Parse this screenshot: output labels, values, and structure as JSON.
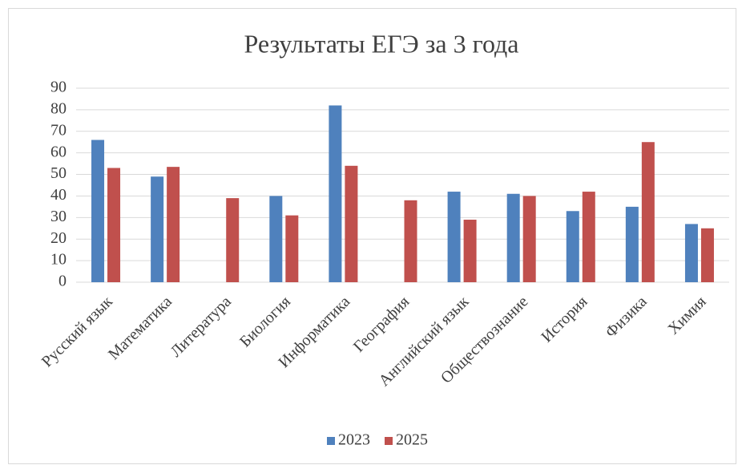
{
  "chart_data": {
    "type": "bar",
    "title": "Результаты ЕГЭ за 3 года",
    "categories": [
      "Русский язык",
      "Математика",
      "Литература",
      "Биология",
      "Информатика",
      "География",
      "Английский язык",
      "Обществознание",
      "История",
      "Физика",
      "Химия"
    ],
    "series": [
      {
        "name": "2023",
        "color": "#4f81bd",
        "values": [
          66,
          49,
          null,
          40,
          82,
          null,
          42,
          41,
          33,
          35,
          27
        ]
      },
      {
        "name": "2025",
        "color": "#c0504d",
        "values": [
          53,
          53.5,
          39,
          31,
          54,
          38,
          29,
          40,
          42,
          65,
          25
        ]
      }
    ],
    "ylim": [
      0,
      90
    ],
    "yticks": [
      0,
      10,
      20,
      30,
      40,
      50,
      60,
      70,
      80,
      90
    ],
    "grid": true,
    "legend": "bottom"
  }
}
